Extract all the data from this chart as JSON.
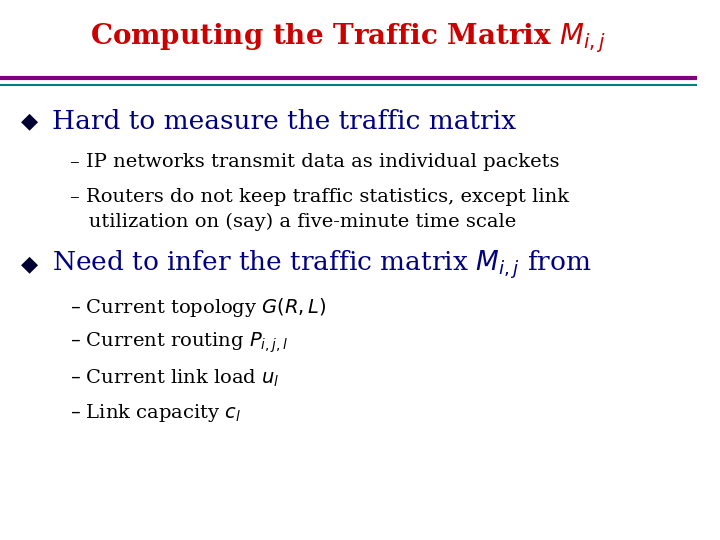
{
  "title_color": "#CC0000",
  "title_fontsize": 20,
  "bg_color": "#FFFFFF",
  "line_color_top": "#800080",
  "line_color_bottom": "#008080",
  "bullet_color": "#000080",
  "bullet1_fontsize": 19,
  "sub1a": "– IP networks transmit data as individual packets",
  "sub1b_line1": "– Routers do not keep traffic statistics, except link",
  "sub1b_line2": "   utilization on (say) a five-minute time scale",
  "bullet2_fontsize": 19,
  "sub_fontsize": 14,
  "sub_color": "#000000",
  "diamond_color": "#000033"
}
